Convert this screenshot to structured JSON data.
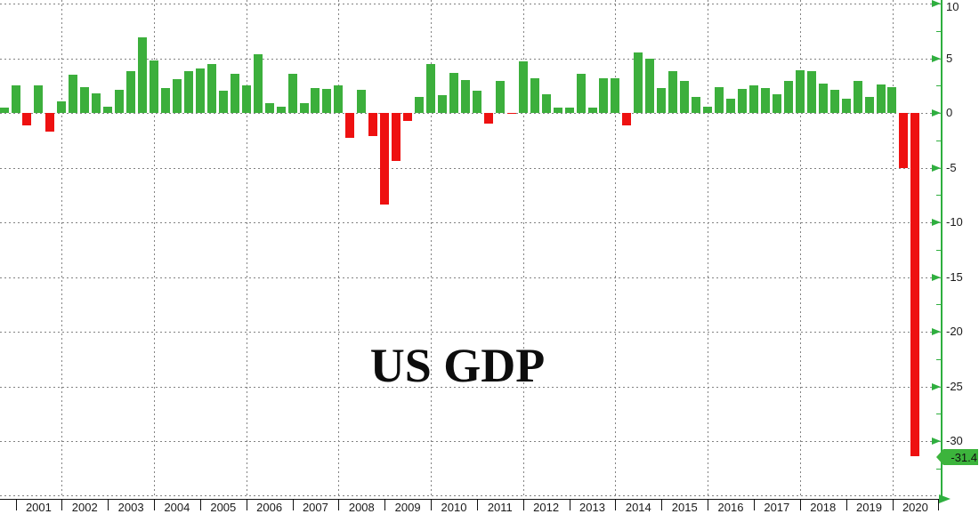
{
  "chart_data": {
    "type": "bar",
    "title": "US GDP",
    "subtitle": "",
    "frequency": "quarterly",
    "start_quarter": "2000 Q3",
    "end_quarter": "2020 Q2",
    "values": [
      0.5,
      2.5,
      -1.1,
      2.5,
      -1.7,
      1.1,
      3.5,
      2.4,
      1.8,
      0.6,
      2.1,
      3.8,
      6.9,
      4.8,
      2.3,
      3.1,
      3.8,
      4.1,
      4.5,
      2.0,
      3.6,
      2.5,
      5.4,
      0.9,
      0.6,
      3.6,
      0.9,
      2.3,
      2.2,
      2.5,
      -2.3,
      2.1,
      -2.1,
      -8.4,
      -4.4,
      -0.7,
      1.5,
      4.5,
      1.6,
      3.7,
      3.0,
      2.0,
      -1.0,
      2.9,
      -0.1,
      4.7,
      3.2,
      1.7,
      0.5,
      0.5,
      3.6,
      0.5,
      3.2,
      3.2,
      -1.1,
      5.5,
      5.0,
      2.3,
      3.8,
      2.9,
      1.5,
      0.6,
      2.4,
      1.3,
      2.2,
      2.5,
      2.3,
      1.7,
      2.9,
      3.9,
      3.8,
      2.7,
      2.1,
      1.3,
      2.9,
      1.5,
      2.6,
      2.4,
      -5.0,
      -31.4
    ],
    "x_year_labels": [
      "2001",
      "2002",
      "2003",
      "2004",
      "2005",
      "2006",
      "2007",
      "2008",
      "2009",
      "2010",
      "2011",
      "2012",
      "2013",
      "2014",
      "2015",
      "2016",
      "2017",
      "2018",
      "2019",
      "2020"
    ],
    "y_ticks": [
      10,
      5,
      0,
      -5,
      -10,
      -15,
      -20,
      -25,
      -30
    ],
    "y_minor_tick_step": 2.5,
    "ylim": [
      10.3,
      -35.0
    ],
    "y_axis_side": "right",
    "grid": "dotted",
    "vertical_gridlines": "even years",
    "legend": "none",
    "last_value_label": "-31.4",
    "colors": {
      "positive_bar": "#3CAF3C",
      "negative_bar": "#EE1111",
      "axis_green": "#2FAF3F",
      "badge_green": "#3CB43C",
      "axis_text": "#1A1A1A",
      "grid_gray": "#828282",
      "title_text": "#0D0D0D"
    }
  }
}
